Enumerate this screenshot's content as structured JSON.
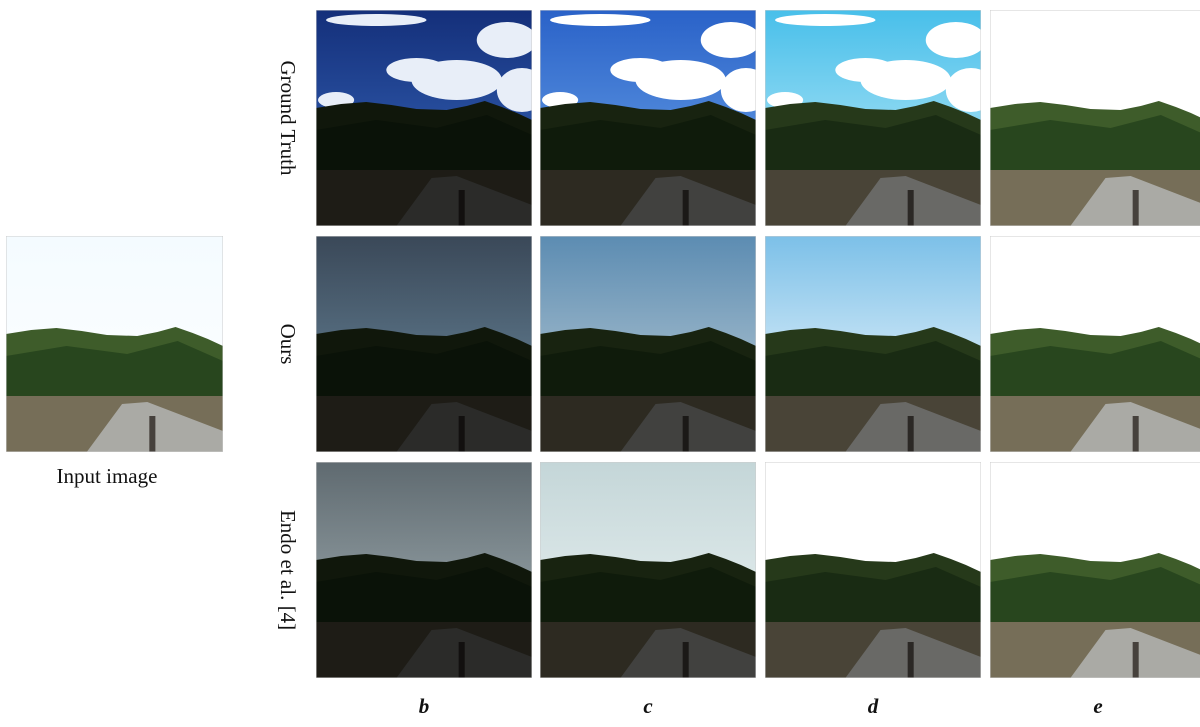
{
  "input": {
    "caption": "Input image"
  },
  "rows": [
    {
      "label": "Ground Truth"
    },
    {
      "label": "Ours"
    },
    {
      "label": "Endo et al. [4]"
    }
  ],
  "columns": [
    "b",
    "c",
    "d",
    "e"
  ]
}
